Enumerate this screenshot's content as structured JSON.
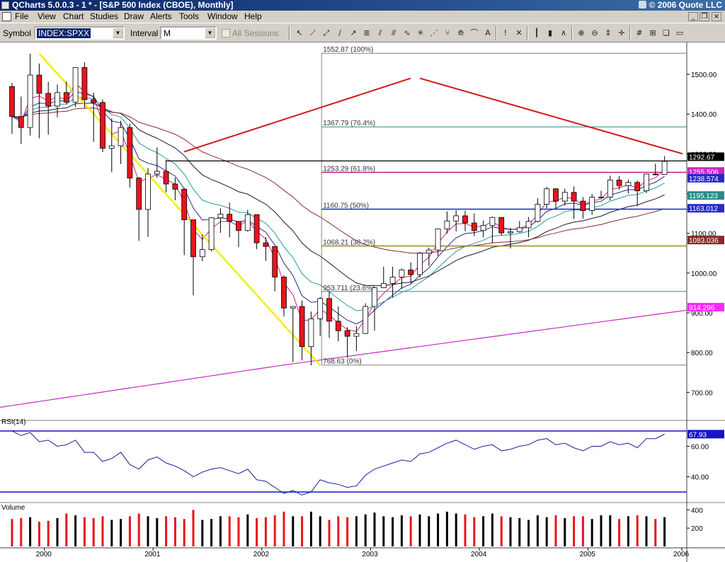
{
  "window": {
    "title": "QCharts 5.0.0.3 - 1 * - [S&P 500 Index (CBOE), Monthly]",
    "copyright": "© 2006 Quote LLC"
  },
  "menu": [
    "File",
    "View",
    "Chart",
    "Studies",
    "Draw",
    "Alerts",
    "Tools",
    "Window",
    "Help"
  ],
  "toolbar": {
    "symbol_label": "Symbol",
    "symbol_value": "INDEX:SPXX",
    "interval_label": "Interval",
    "interval_value": "M",
    "all_sessions_label": "All Sessions",
    "buttons": [
      "pointer-icon",
      "trendline-icon",
      "ray-icon",
      "line-icon",
      "arrow-icon",
      "fibonacci-icon",
      "regression-icon",
      "channel-icon",
      "cycle-icon",
      "gann-icon",
      "speed-lines-icon",
      "andrews-icon",
      "fan-icon",
      "arc-icon",
      "text-icon",
      "alert-icon",
      "erase-icon",
      "bar-style-icon",
      "candle-style-icon",
      "line-style-icon",
      "zoom-in-icon",
      "zoom-out-icon",
      "scale-icon",
      "cursor-icon",
      "grid-icon",
      "tile-icon",
      "cascade-icon",
      "window-icon"
    ]
  },
  "colors": {
    "up_candle": "#ffffff",
    "down_candle": "#e8141c",
    "fib_pink": "#c8148c",
    "fib_blue": "#1428c8",
    "fib_olive": "#9a8a14",
    "fib_teal": "#2a8a8a",
    "trend_red": "#d01818",
    "trend_yellow": "#f0f000"
  },
  "chart_data": [
    {
      "type": "candlestick",
      "title": "S&P 500 Index (CBOE), Monthly",
      "x_labels": [
        "2000",
        "2001",
        "2002",
        "2003",
        "2004",
        "2005",
        "2006"
      ],
      "y_ticks": [
        700,
        800,
        900,
        1000,
        1100,
        1200,
        1300,
        1400,
        1500
      ],
      "y_tick_labels": [
        "700.00",
        "800.00",
        "900.00",
        "1000.00",
        "1100.00",
        "1200.00",
        "1300.00",
        "1400.00",
        "1500.00"
      ],
      "ylim": [
        640,
        1580
      ],
      "fib_levels": [
        {
          "label": "1552.87 (100%)",
          "value": 1552.87
        },
        {
          "label": "1367.79 (76.4%)",
          "value": 1367.79
        },
        {
          "label": "1253.29 (61.8%)",
          "value": 1253.29
        },
        {
          "label": "1160.75 (50%)",
          "value": 1160.75
        },
        {
          "label": "1068.21 (38.2%)",
          "value": 1068.21
        },
        {
          "label": "953.711 (23.6%)",
          "value": 953.711
        },
        {
          "label": "768.63 (0%)",
          "value": 768.63
        }
      ],
      "last_value_tags": [
        {
          "label": "1292.67",
          "value": 1292.67
        },
        {
          "label": "1255.506",
          "value": 1255.506
        },
        {
          "label": "1238.574",
          "value": 1238.574
        },
        {
          "label": "1195.123",
          "value": 1195.123
        },
        {
          "label": "1163.012",
          "value": 1163.012
        },
        {
          "label": "1083.036",
          "value": 1083.036
        },
        {
          "label": "914.296",
          "value": 914.296
        }
      ],
      "candles": [
        [
          1469,
          1394,
          1478,
          1350
        ],
        [
          1394,
          1366,
          1444,
          1325
        ],
        [
          1366,
          1498,
          1552,
          1346
        ],
        [
          1498,
          1452,
          1527,
          1339
        ],
        [
          1452,
          1420,
          1481,
          1348
        ],
        [
          1420,
          1454,
          1474,
          1392
        ],
        [
          1454,
          1430,
          1482,
          1424
        ],
        [
          1430,
          1517,
          1518,
          1418
        ],
        [
          1517,
          1436,
          1530,
          1415
        ],
        [
          1436,
          1429,
          1454,
          1330
        ],
        [
          1429,
          1314,
          1436,
          1304
        ],
        [
          1314,
          1320,
          1389,
          1254
        ],
        [
          1320,
          1366,
          1383,
          1274
        ],
        [
          1366,
          1239,
          1376,
          1215
        ],
        [
          1239,
          1160,
          1242,
          1081
        ],
        [
          1160,
          1249,
          1264,
          1091
        ],
        [
          1249,
          1256,
          1316,
          1240
        ],
        [
          1256,
          1224,
          1285,
          1203
        ],
        [
          1224,
          1211,
          1240,
          1183
        ],
        [
          1211,
          1134,
          1214,
          1045
        ],
        [
          1134,
          1041,
          1133,
          944
        ],
        [
          1041,
          1059,
          1097,
          1030
        ],
        [
          1059,
          1139,
          1140,
          1054
        ],
        [
          1139,
          1148,
          1163,
          1101
        ],
        [
          1148,
          1130,
          1177,
          1090
        ],
        [
          1130,
          1107,
          1127,
          1065
        ],
        [
          1107,
          1147,
          1159,
          1104
        ],
        [
          1147,
          1076,
          1147,
          1060
        ],
        [
          1076,
          1067,
          1091,
          1031
        ],
        [
          1067,
          990,
          1067,
          954
        ],
        [
          990,
          912,
          994,
          891
        ],
        [
          912,
          916,
          917,
          776
        ],
        [
          916,
          815,
          931,
          780
        ],
        [
          815,
          885,
          903,
          768
        ],
        [
          885,
          936,
          939,
          842
        ],
        [
          936,
          879,
          954,
          837
        ],
        [
          879,
          855,
          916,
          828
        ],
        [
          855,
          841,
          864,
          787
        ],
        [
          841,
          848,
          866,
          804
        ],
        [
          848,
          916,
          924,
          847
        ],
        [
          916,
          963,
          965,
          855
        ],
        [
          963,
          974,
          1016,
          966
        ],
        [
          974,
          990,
          1016,
          938
        ],
        [
          990,
          1008,
          1011,
          960
        ],
        [
          1008,
          996,
          1027,
          974
        ],
        [
          996,
          1050,
          1053,
          989
        ],
        [
          1050,
          1058,
          1064,
          1018
        ],
        [
          1058,
          1111,
          1112,
          1043
        ],
        [
          1111,
          1131,
          1155,
          1099
        ],
        [
          1131,
          1144,
          1158,
          1105
        ],
        [
          1144,
          1126,
          1157,
          1105
        ],
        [
          1126,
          1107,
          1150,
          1093
        ],
        [
          1107,
          1120,
          1132,
          1090
        ],
        [
          1120,
          1140,
          1142,
          1076
        ],
        [
          1140,
          1101,
          1127,
          1095
        ],
        [
          1101,
          1104,
          1114,
          1062
        ],
        [
          1104,
          1114,
          1131,
          1102
        ],
        [
          1114,
          1130,
          1141,
          1090
        ],
        [
          1130,
          1173,
          1188,
          1127
        ],
        [
          1173,
          1212,
          1217,
          1163
        ],
        [
          1212,
          1181,
          1213,
          1163
        ],
        [
          1181,
          1203,
          1212,
          1170
        ],
        [
          1203,
          1181,
          1218,
          1136
        ],
        [
          1181,
          1157,
          1191,
          1137
        ],
        [
          1157,
          1191,
          1199,
          1146
        ],
        [
          1191,
          1191,
          1207,
          1188
        ],
        [
          1191,
          1234,
          1245,
          1183
        ],
        [
          1234,
          1220,
          1244,
          1210
        ],
        [
          1220,
          1228,
          1235,
          1200
        ],
        [
          1228,
          1207,
          1233,
          1168
        ],
        [
          1207,
          1249,
          1249,
          1201
        ],
        [
          1249,
          1248,
          1275,
          1246
        ],
        [
          1248,
          1281,
          1294,
          1248
        ]
      ]
    },
    {
      "type": "line",
      "title": "RSI(14)",
      "y_ticks": [
        40,
        60
      ],
      "y_tick_labels": [
        "40.00",
        "60.00"
      ],
      "ylim": [
        24,
        76
      ],
      "last_value_label": "67.93",
      "last_value": 67.93,
      "values": [
        70,
        67,
        69,
        63,
        64,
        60,
        61,
        64,
        56,
        56,
        50,
        52,
        56,
        48,
        45,
        51,
        53,
        49,
        47,
        44,
        40,
        43,
        45,
        46,
        44,
        42,
        45,
        38,
        37,
        33,
        29,
        31,
        28,
        30,
        38,
        36,
        35,
        33,
        34,
        41,
        45,
        47,
        49,
        51,
        50,
        55,
        56,
        59,
        62,
        64,
        61,
        58,
        60,
        61,
        57,
        58,
        60,
        61,
        64,
        65,
        61,
        62,
        59,
        57,
        60,
        60,
        63,
        61,
        62,
        59,
        65,
        65,
        67.93
      ]
    },
    {
      "type": "bar",
      "title": "Volume",
      "y_ticks": [
        200,
        400
      ],
      "y_tick_labels": [
        "200",
        "400"
      ],
      "ylim": [
        0,
        480
      ],
      "values": [
        300,
        310,
        320,
        270,
        280,
        310,
        360,
        340,
        320,
        310,
        330,
        290,
        300,
        330,
        360,
        330,
        310,
        330,
        320,
        300,
        400,
        290,
        300,
        330,
        330,
        320,
        350,
        310,
        320,
        340,
        380,
        330,
        330,
        380,
        330,
        290,
        330,
        320,
        330,
        350,
        370,
        330,
        320,
        340,
        330,
        350,
        330,
        360,
        380,
        360,
        350,
        320,
        330,
        360,
        330,
        320,
        310,
        290,
        340,
        320,
        340,
        310,
        330,
        330,
        300,
        340,
        340,
        300,
        330,
        340,
        330,
        300,
        320
      ]
    }
  ]
}
